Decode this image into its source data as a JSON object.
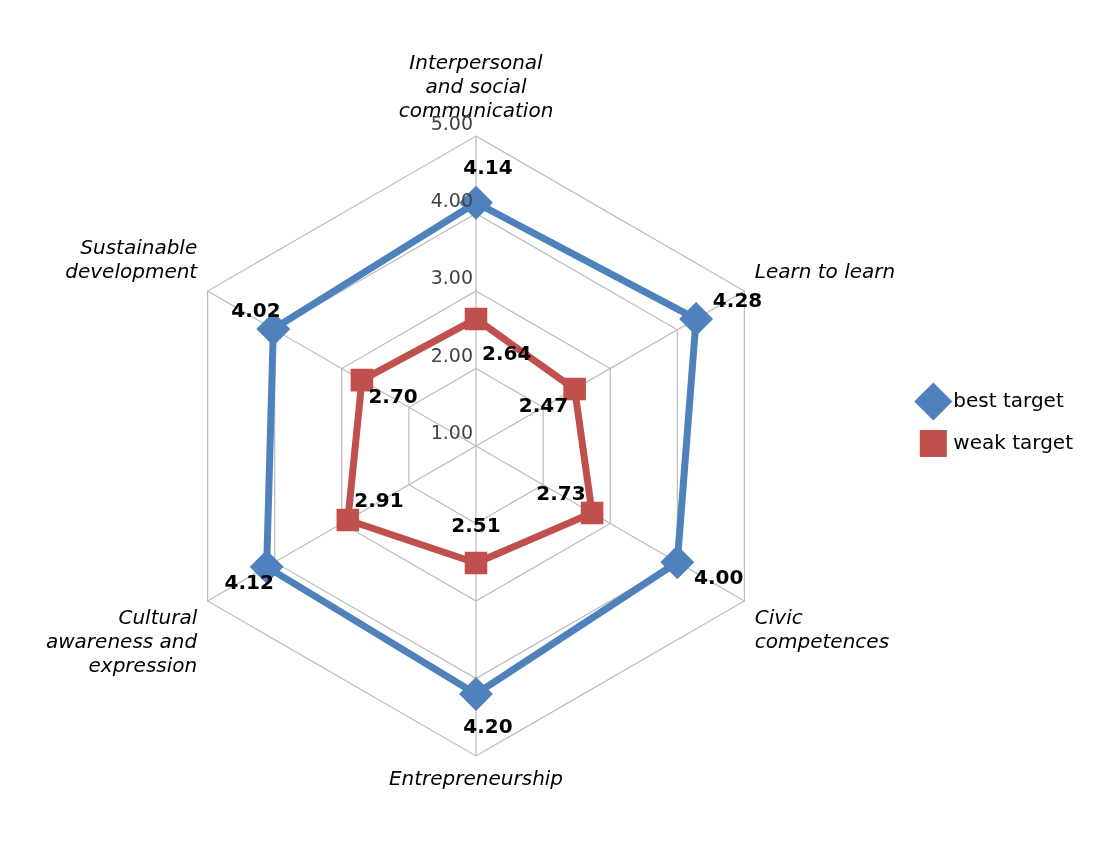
{
  "chart_data": {
    "type": "radar",
    "categories": [
      "Interpersonal and social communication",
      "Learn to learn",
      "Civic competences",
      "Entrepreneurship",
      "Cultural awareness and expression",
      "Sustainable development"
    ],
    "series": [
      {
        "name": "best target",
        "color": "#4f81bd",
        "marker": "diamond",
        "values": [
          4.14,
          4.28,
          4.0,
          4.2,
          4.12,
          4.02
        ],
        "value_labels": [
          "4.14",
          "4.28",
          "4.00",
          "4.20",
          "4.12",
          "4.02"
        ]
      },
      {
        "name": "weak target",
        "color": "#c0504d",
        "marker": "square",
        "values": [
          2.64,
          2.47,
          2.73,
          2.51,
          2.91,
          2.7
        ],
        "value_labels": [
          "2.64",
          "2.47",
          "2.73",
          "2.51",
          "2.91",
          "2.70"
        ]
      }
    ],
    "ylim": [
      1,
      5
    ],
    "yticks": [
      {
        "value": 1,
        "label": "1.00"
      },
      {
        "value": 2,
        "label": "2.00"
      },
      {
        "value": 3,
        "label": "3.00"
      },
      {
        "value": 4,
        "label": "4.00"
      },
      {
        "value": 5,
        "label": "5.00"
      }
    ],
    "grid": true,
    "legend": "right"
  }
}
